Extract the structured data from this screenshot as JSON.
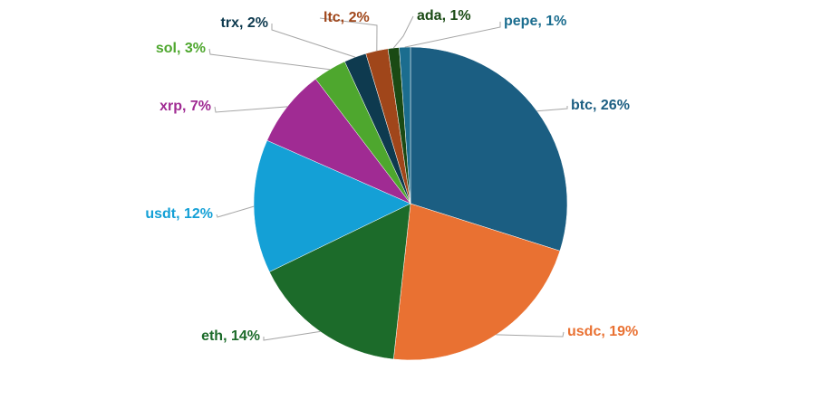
{
  "chart_data": {
    "type": "pie",
    "categories": [
      "btc",
      "usdc",
      "eth",
      "usdt",
      "xrp",
      "sol",
      "trx",
      "ltc",
      "ada",
      "pepe"
    ],
    "values": [
      26,
      19,
      14,
      12,
      7,
      3,
      2,
      2,
      1,
      1
    ],
    "value_labels": [
      "btc, 26%",
      "usdc, 19%",
      "eth, 14%",
      "usdt, 12%",
      "xrp, 7%",
      "sol, 3%",
      "trx, 2%",
      "ltc, 2%",
      "ada, 1%",
      "pepe, 1%"
    ],
    "colors": [
      "#1b5e82",
      "#e97132",
      "#1c6b2a",
      "#14a0d6",
      "#a02b93",
      "#4ea72e",
      "#0e3a4f",
      "#a0461a",
      "#1a4a14",
      "#1b6d8f"
    ]
  }
}
